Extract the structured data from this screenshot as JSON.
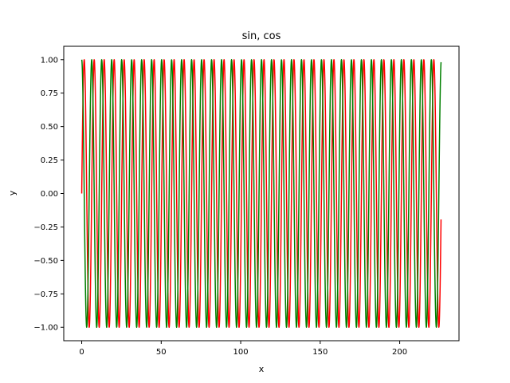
{
  "chart_data": {
    "type": "line",
    "title": "sin, cos",
    "xlabel": "x",
    "ylabel": "y",
    "xlim": [
      -11.3,
      237.3
    ],
    "ylim": [
      -1.1,
      1.1
    ],
    "grid": false,
    "x_ticks": [
      0,
      50,
      100,
      150,
      200
    ],
    "y_ticks": [
      -1.0,
      -0.75,
      -0.5,
      -0.25,
      0.0,
      0.25,
      0.5,
      0.75,
      1.0
    ],
    "x_tick_labels": [
      "0",
      "50",
      "100",
      "150",
      "200"
    ],
    "y_tick_labels": [
      "−1.00",
      "−0.75",
      "−0.50",
      "−0.25",
      "0.00",
      "0.25",
      "0.50",
      "0.75",
      "1.00"
    ],
    "series": [
      {
        "function": "sin",
        "color": "#ff0000",
        "x_start": 0,
        "x_end": 226
      },
      {
        "function": "cos",
        "color": "#008000",
        "x_start": 0,
        "x_end": 226
      }
    ]
  }
}
